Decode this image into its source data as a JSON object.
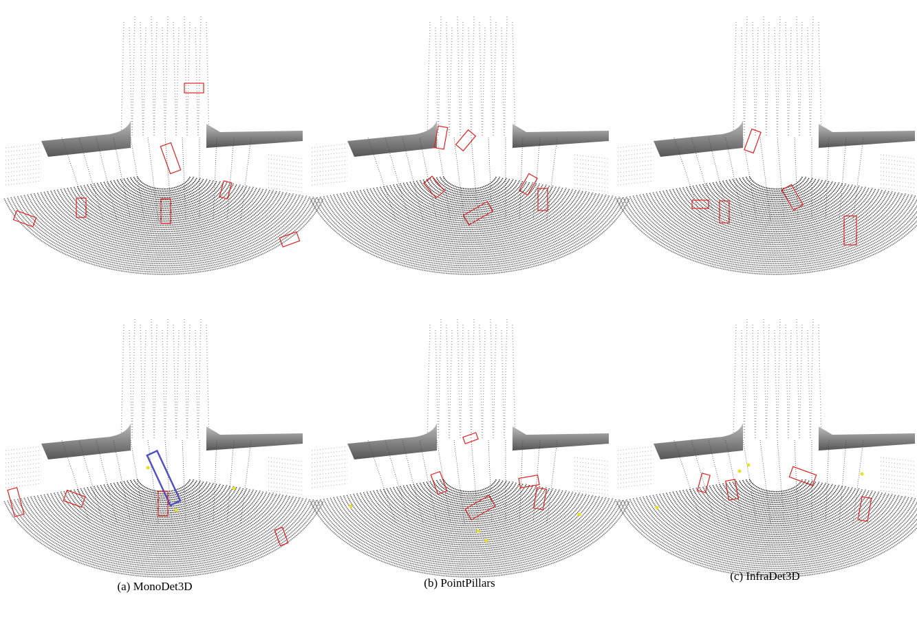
{
  "figure": {
    "captions": [
      "(a) MonoDet3D",
      "(b) PointPillars",
      "(c) InfraDet3D"
    ]
  }
}
